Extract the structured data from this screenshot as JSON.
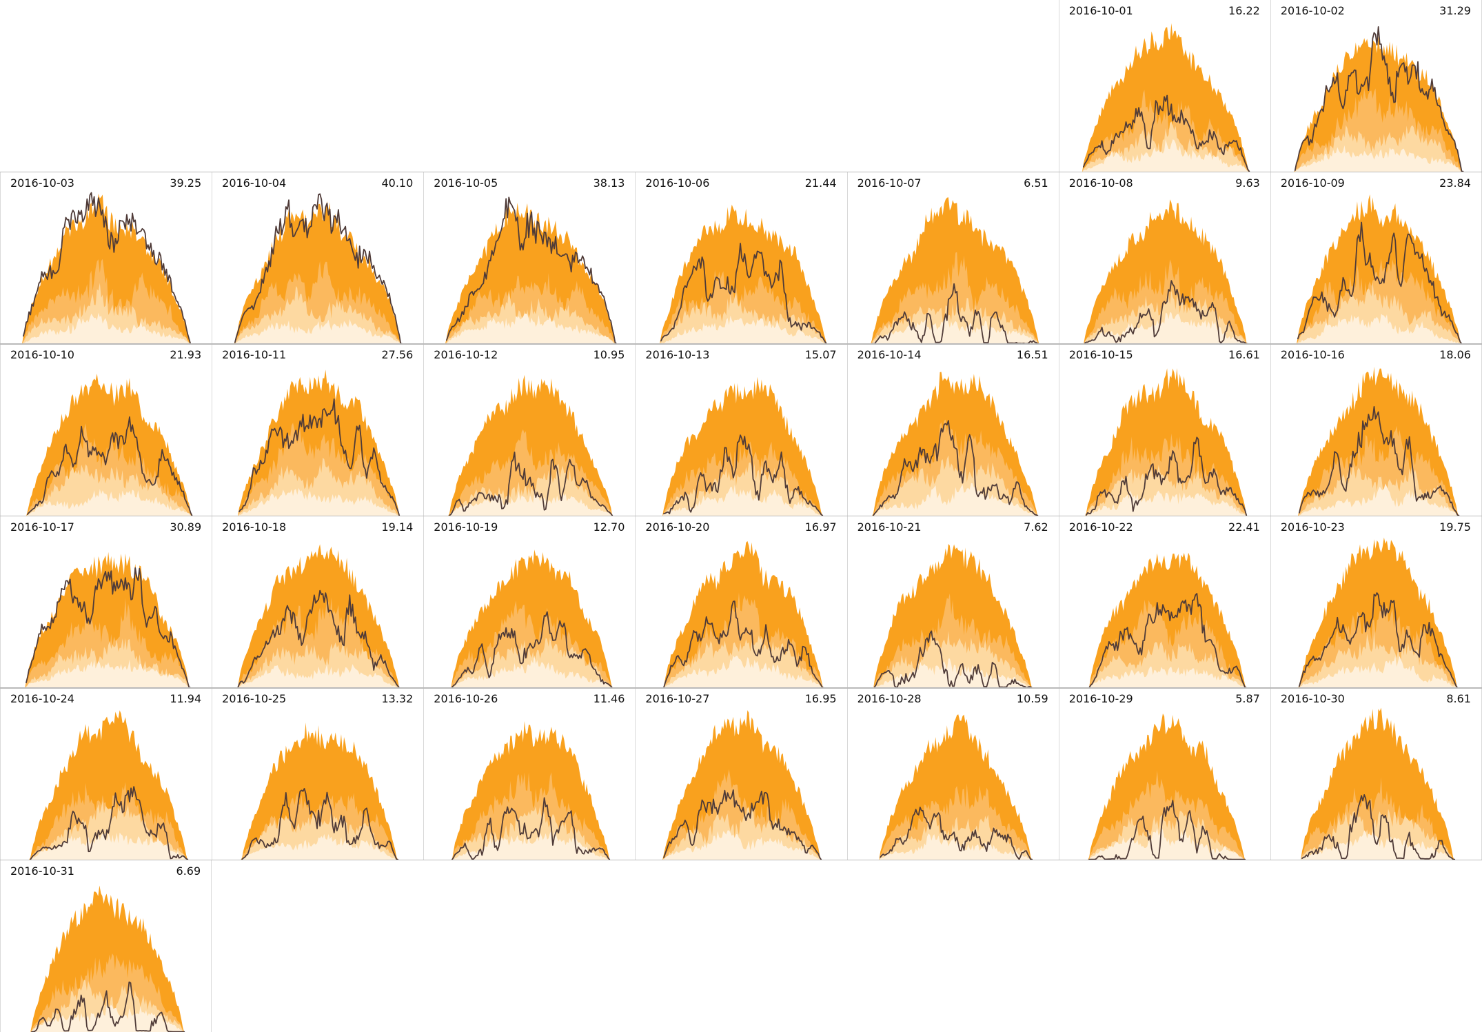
{
  "chart_data": {
    "type": "area",
    "title": "",
    "layout": "calendar-small-multiples-7cols-monday-first",
    "month": "2016-10",
    "columns": 7,
    "rows": 6,
    "x": [
      "2016-10-01",
      "2016-10-02",
      "2016-10-03",
      "2016-10-04",
      "2016-10-05",
      "2016-10-06",
      "2016-10-07",
      "2016-10-08",
      "2016-10-09",
      "2016-10-10",
      "2016-10-11",
      "2016-10-12",
      "2016-10-13",
      "2016-10-14",
      "2016-10-15",
      "2016-10-16",
      "2016-10-17",
      "2016-10-18",
      "2016-10-19",
      "2016-10-20",
      "2016-10-21",
      "2016-10-22",
      "2016-10-23",
      "2016-10-24",
      "2016-10-25",
      "2016-10-26",
      "2016-10-27",
      "2016-10-28",
      "2016-10-29",
      "2016-10-30",
      "2016-10-31"
    ],
    "values": [
      16.22,
      31.29,
      39.25,
      40.1,
      38.13,
      21.44,
      6.51,
      9.63,
      23.84,
      21.93,
      27.56,
      10.95,
      15.07,
      16.51,
      16.61,
      18.06,
      30.89,
      19.14,
      12.7,
      16.97,
      7.62,
      22.41,
      19.75,
      11.94,
      13.32,
      11.46,
      16.95,
      10.59,
      5.87,
      8.61,
      6.69
    ],
    "value_label_format": "0.00",
    "value_max_shown": 40.1,
    "bands": [
      "envelope-max",
      "upper-band",
      "mid-band",
      "low-band"
    ],
    "overlay_line": "actual-profile",
    "grid": "off",
    "legend": "none"
  },
  "style": {
    "background": "#ffffff",
    "band_colors": [
      "#f9a11e",
      "#fbb95e",
      "#fdd9a1",
      "#fef0db"
    ],
    "actual_line_color": "#4f3b38",
    "row_separator_color": "#b9b9b9",
    "cell_border_color": "#d9d9d9",
    "header_text_color": "#111111"
  }
}
